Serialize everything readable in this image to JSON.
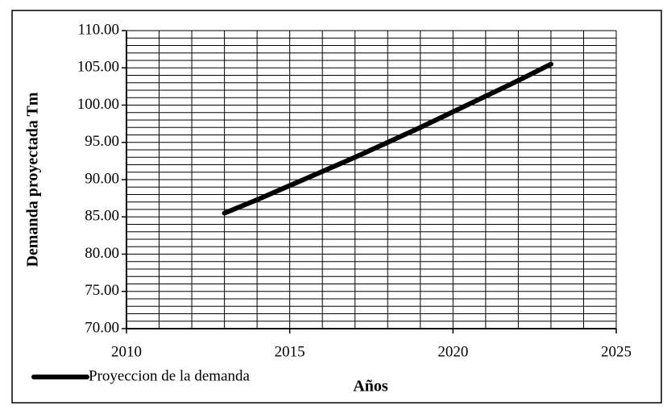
{
  "chart_data": {
    "type": "line",
    "x_label": "Años",
    "y_label": "Demanda proyectada Tm",
    "x": [
      2013,
      2014,
      2015,
      2016,
      2017,
      2018,
      2019,
      2020,
      2021,
      2022,
      2023
    ],
    "series": [
      {
        "name": "Proyeccion de la demanda",
        "color": "#000000",
        "values": [
          85.5,
          87.3,
          89.2,
          91.1,
          93.0,
          95.0,
          97.0,
          99.1,
          101.2,
          103.3,
          105.5
        ]
      }
    ],
    "xlim": [
      2010,
      2025
    ],
    "xticks": [
      2010,
      2015,
      2020,
      2025
    ],
    "ylim": [
      70,
      110
    ],
    "yticks": [
      {
        "value": 70,
        "label": "70.00"
      },
      {
        "value": 75,
        "label": "75.00"
      },
      {
        "value": 80,
        "label": "80.00"
      },
      {
        "value": 85,
        "label": "85.00"
      },
      {
        "value": 90,
        "label": "90.00"
      },
      {
        "value": 95,
        "label": "95.00"
      },
      {
        "value": 100,
        "label": "100.00"
      },
      {
        "value": 105,
        "label": "105.00"
      },
      {
        "value": 110,
        "label": "110.00"
      }
    ],
    "grid": true,
    "minor_grid_step": {
      "x": 1,
      "y": 1
    },
    "legend": "bottom-left"
  }
}
